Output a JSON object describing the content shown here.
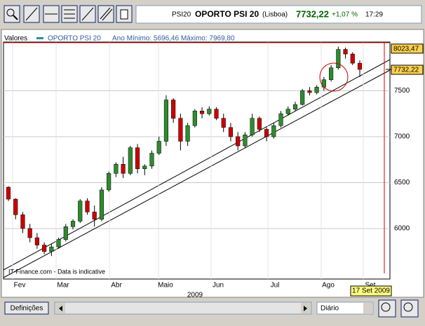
{
  "toolbar": {
    "symbol": "PSI20",
    "name": "OPORTO PSI 20",
    "exchange": "(Lisboa)",
    "price": "7732,22",
    "change": "+1,07 %",
    "time": "17:29"
  },
  "chart_data": {
    "type": "candlestick",
    "legend": {
      "label": "Valores",
      "series_name": "OPORTO PSI 20",
      "stats": "Ano Mínimo: 5696,46 Máximo: 7969,80"
    },
    "open": [
      6450,
      6320,
      6150,
      6000,
      5900,
      5820,
      5750,
      5800,
      5880,
      6020,
      6080,
      6300,
      6180,
      6100,
      6420,
      6600,
      6700,
      6600,
      6880,
      6650,
      6680,
      6820,
      6950,
      7400,
      7200,
      6950,
      7120,
      7280,
      7250,
      7300,
      7200,
      7100,
      7000,
      6900,
      7020,
      7200,
      7080,
      7000,
      7120,
      7250,
      7300,
      7350,
      7500,
      7480,
      7540,
      7620,
      7750,
      7950,
      7900,
      7800
    ],
    "high": [
      6460,
      6330,
      6180,
      6050,
      5950,
      5850,
      5830,
      5900,
      6050,
      6100,
      6320,
      6330,
      6250,
      6450,
      6620,
      6720,
      6780,
      6900,
      6920,
      6700,
      6850,
      7000,
      7450,
      7420,
      7250,
      7150,
      7300,
      7320,
      7330,
      7320,
      7250,
      7150,
      7050,
      7050,
      7250,
      7220,
      7100,
      7150,
      7280,
      7330,
      7380,
      7520,
      7540,
      7560,
      7650,
      7780,
      7980,
      7970,
      7920,
      7830
    ],
    "low": [
      6300,
      6100,
      5950,
      5850,
      5780,
      5720,
      5700,
      5780,
      5860,
      5990,
      6060,
      6150,
      6020,
      6080,
      6400,
      6560,
      6550,
      6580,
      6600,
      6580,
      6650,
      6800,
      6900,
      7150,
      6850,
      6900,
      7100,
      7200,
      7230,
      7180,
      7050,
      6950,
      6850,
      6880,
      7000,
      7050,
      6950,
      6980,
      7100,
      7230,
      7280,
      7340,
      7450,
      7460,
      7500,
      7600,
      7730,
      7850,
      7780,
      7650
    ],
    "close": [
      6320,
      6150,
      6000,
      5900,
      5820,
      5750,
      5800,
      5880,
      6020,
      6080,
      6300,
      6180,
      6100,
      6420,
      6600,
      6700,
      6600,
      6880,
      6650,
      6680,
      6820,
      6950,
      7400,
      7200,
      6950,
      7120,
      7280,
      7250,
      7300,
      7200,
      7100,
      7000,
      6900,
      7020,
      7200,
      7080,
      7000,
      7120,
      7250,
      7300,
      7350,
      7500,
      7480,
      7540,
      7620,
      7750,
      7950,
      7900,
      7800,
      7732.22
    ],
    "up_color": "#2e8b2e",
    "down_color": "#cc0000",
    "ylim": [
      5450,
      8030
    ],
    "yticks": [
      6000,
      6500,
      7000,
      7500
    ],
    "months": [
      "Fev",
      "Mar",
      "Abr",
      "Maio",
      "Jun",
      "Jul",
      "Ago",
      "Set"
    ],
    "year": "2009",
    "markers": [
      {
        "value": 8023.47,
        "label": "8023,47"
      },
      {
        "value": 7732.22,
        "label": "7732,22"
      }
    ],
    "date_label": "17 Set 2009",
    "watermark": "IT-Finance.com - Data is indicative"
  },
  "footer": {
    "settings_button": "Definições",
    "period": "Diário"
  }
}
